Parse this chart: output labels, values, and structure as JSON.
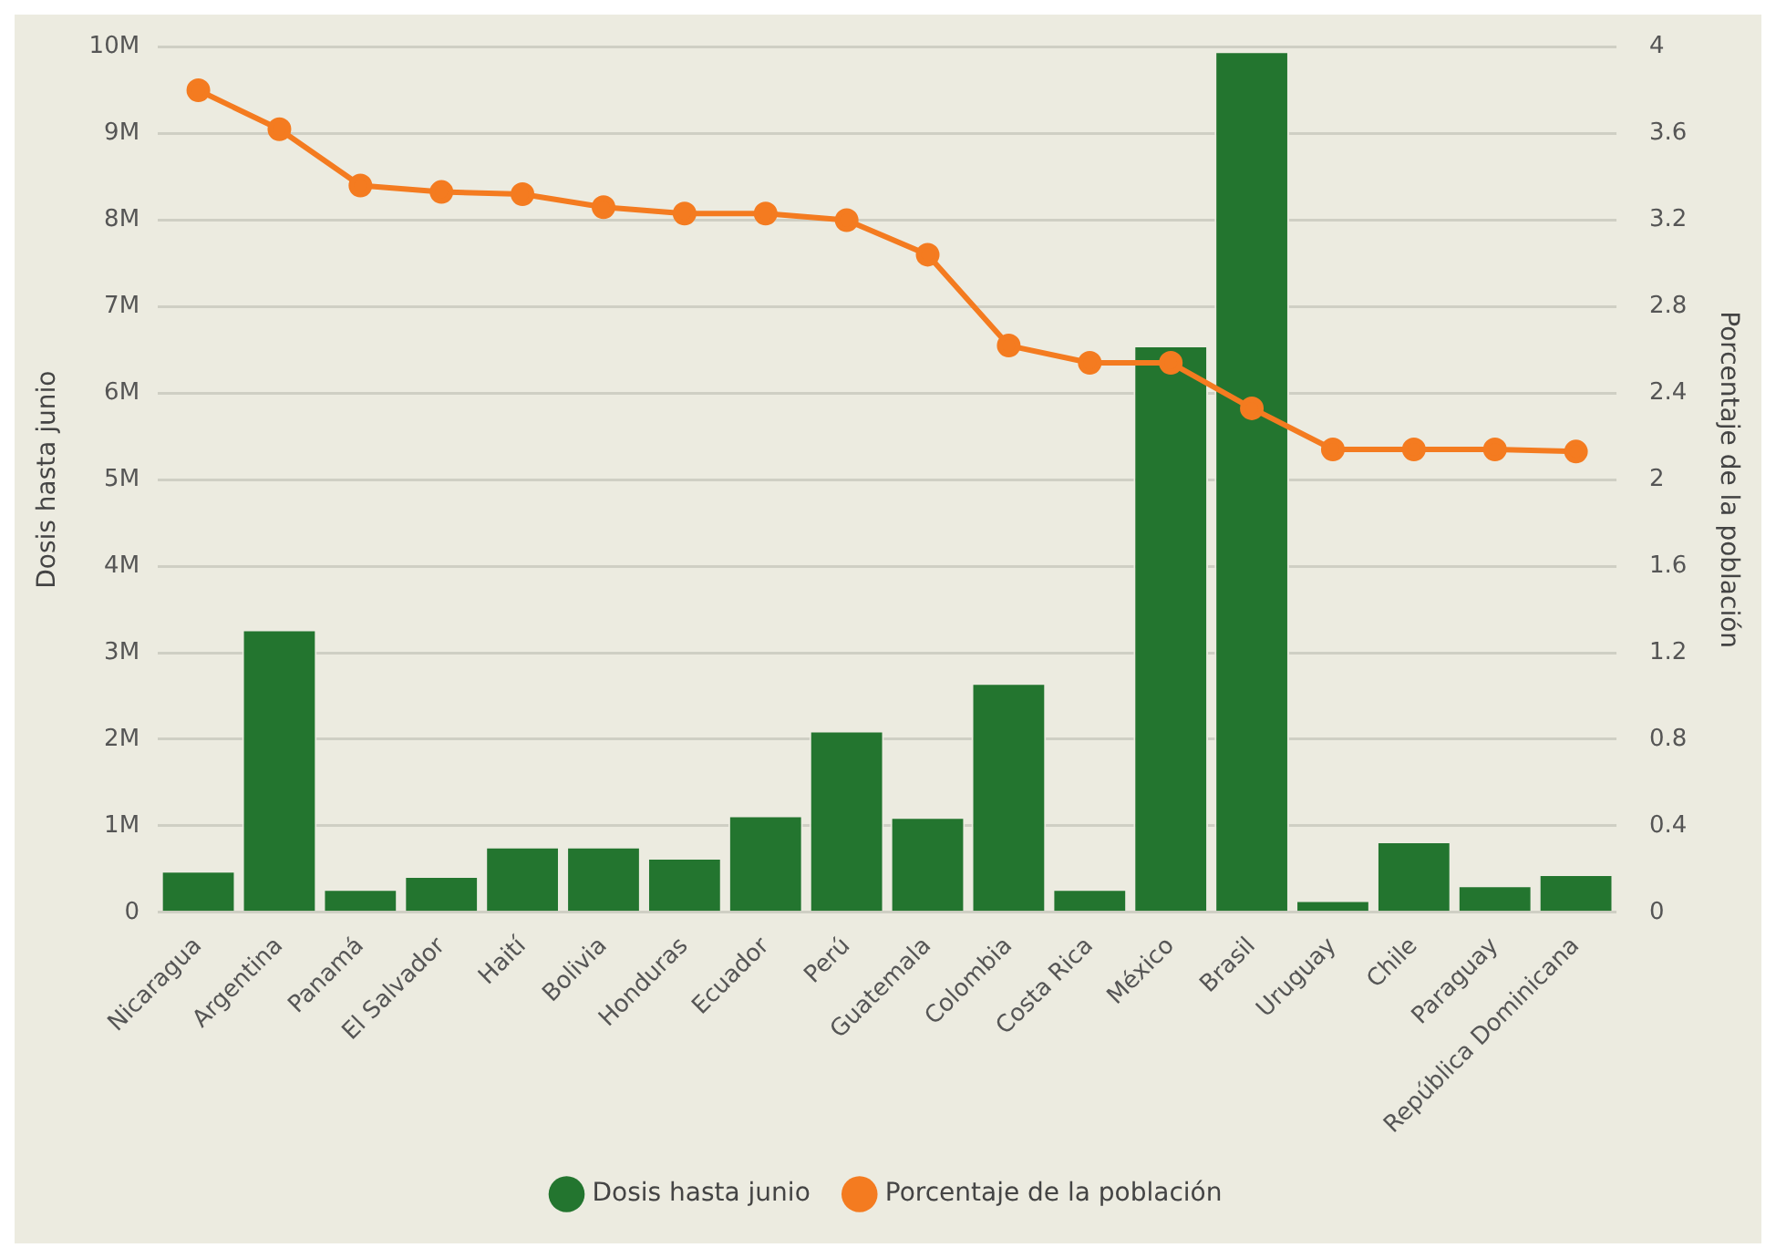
{
  "chart_data": {
    "type": "bar",
    "ylabel": "Dosis hasta junio",
    "y2label": "Porcentaje de la población",
    "categories": [
      "Nicaragua",
      "Argentina",
      "Panamá",
      "El Salvador",
      "Haití",
      "Bolivia",
      "Honduras",
      "Ecuador",
      "Perú",
      "Guatemala",
      "Colombia",
      "Costa Rica",
      "México",
      "Brasil",
      "Uruguay",
      "Chile",
      "Paraguay",
      "República Dominicana"
    ],
    "series": [
      {
        "name": "Dosis hasta junio",
        "color": "#23752f",
        "values": [
          480000,
          3270000,
          270000,
          420000,
          760000,
          760000,
          630000,
          1120000,
          2100000,
          1100000,
          2650000,
          270000,
          6550000,
          9950000,
          140000,
          820000,
          310000,
          440000
        ]
      },
      {
        "name": "Porcentaje de la población",
        "type": "line",
        "axis": "y2",
        "color": "#f47b20",
        "marker": "circle",
        "values": [
          3.8,
          3.62,
          3.36,
          3.33,
          3.32,
          3.26,
          3.23,
          3.23,
          3.2,
          3.04,
          2.62,
          2.54,
          2.54,
          2.33,
          2.14,
          2.14,
          2.14,
          2.13
        ]
      }
    ],
    "ylim": [
      0,
      10000000
    ],
    "yticks": [
      0,
      {
        "value": 1000000,
        "label": "1M"
      },
      {
        "value": 2000000,
        "label": "2M"
      },
      {
        "value": 3000000,
        "label": "3M"
      },
      {
        "value": 4000000,
        "label": "4M"
      },
      {
        "value": 5000000,
        "label": "5M"
      },
      {
        "value": 6000000,
        "label": "6M"
      },
      {
        "value": 7000000,
        "label": "7M"
      },
      {
        "value": 8000000,
        "label": "8M"
      },
      {
        "value": 9000000,
        "label": "9M"
      },
      {
        "value": 10000000,
        "label": "10M"
      }
    ],
    "y2lim": [
      0,
      4
    ],
    "y2ticks": [
      0,
      0.4,
      0.8,
      1.2,
      1.6,
      2,
      2.4,
      2.8,
      3.2,
      3.6,
      4
    ],
    "grid": "y",
    "legend": "bottom"
  }
}
